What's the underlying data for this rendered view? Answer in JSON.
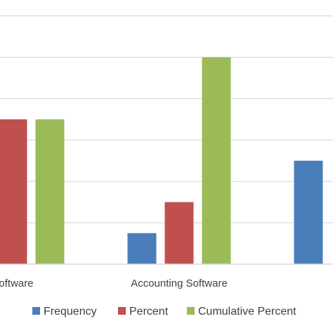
{
  "chart_data": {
    "type": "bar",
    "title": "",
    "xlabel": "",
    "ylabel": "",
    "categories": [
      "Software",
      "Accounting Software",
      ""
    ],
    "series": [
      {
        "name": "Frequency",
        "color": "#4a7ebb",
        "values": [
          null,
          15,
          50
        ]
      },
      {
        "name": "Percent",
        "color": "#c0504d",
        "values": [
          70,
          30,
          null
        ]
      },
      {
        "name": "Cumulative Percent",
        "color": "#9bbb59",
        "values": [
          70,
          100,
          null
        ]
      }
    ],
    "ylim": [
      0,
      125
    ],
    "ygrid_step": 20,
    "grid": true,
    "legend_position": "bottom"
  }
}
